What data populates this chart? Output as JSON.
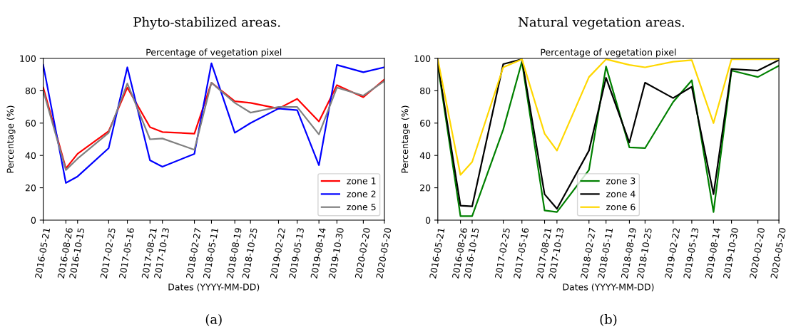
{
  "chart_data": [
    {
      "type": "line",
      "title": "Phyto-stabilized areas.",
      "subtitle": "Percentage of vegetation pixel",
      "xlabel": "Dates (YYYY-MM-DD)",
      "ylabel": "Percentage (%)",
      "annotations": [
        "(a)"
      ],
      "x": [
        "2016-05-21",
        "2016-08-26",
        "2016-10-15",
        "2017-02-25",
        "2017-05-16",
        "2017-08-21",
        "2017-10-13",
        "2018-02-27",
        "2018-05-11",
        "2018-08-19",
        "2018-10-25",
        "2019-02-22",
        "2019-05-13",
        "2019-08-14",
        "2019-10-30",
        "2020-02-20",
        "2020-05-20"
      ],
      "series": [
        {
          "name": "zone 1",
          "color": "#ff0000",
          "values": [
            82,
            32,
            41,
            55,
            82,
            57.5,
            54.5,
            53.5,
            85,
            73.5,
            72.5,
            69,
            75,
            61,
            83.5,
            76,
            87
          ]
        },
        {
          "name": "zone 2",
          "color": "#0000ff",
          "values": [
            96,
            23,
            27,
            44.5,
            94.5,
            37,
            33,
            41,
            97,
            54,
            60,
            69,
            68,
            34,
            96,
            91.5,
            94.5
          ]
        },
        {
          "name": "zone 5",
          "color": "#808080",
          "values": [
            80,
            31,
            38,
            54,
            84.5,
            50,
            50.5,
            43.5,
            85,
            72.5,
            66.5,
            70,
            70,
            53,
            82,
            77,
            86
          ]
        }
      ],
      "xlim": [
        "2016-05-21",
        "2020-05-20"
      ],
      "xticks": [
        "2016-05-21",
        "2016-08-26",
        "2016-10-15",
        "2017-02-25",
        "2017-05-16",
        "2017-08-21",
        "2017-10-13",
        "2018-02-27",
        "2018-05-11",
        "2018-08-19",
        "2018-10-25",
        "2019-02-22",
        "2019-05-13",
        "2019-08-14",
        "2019-10-30",
        "2020-02-20",
        "2020-05-20"
      ],
      "ylim": [
        0,
        100
      ],
      "yticks": [
        0,
        20,
        40,
        60,
        80,
        100
      ],
      "legend": "bottom right",
      "grid": false
    },
    {
      "type": "line",
      "title": "Natural vegetation areas.",
      "subtitle": "Percentage of vegetation pixel",
      "xlabel": "Dates (YYYY-MM-DD)",
      "ylabel": "Percentage (%)",
      "annotations": [
        "(b)"
      ],
      "x": [
        "2016-05-21",
        "2016-08-26",
        "2016-10-15",
        "2017-02-25",
        "2017-05-16",
        "2017-08-21",
        "2017-10-13",
        "2018-02-27",
        "2018-05-11",
        "2018-08-19",
        "2018-10-25",
        "2019-02-22",
        "2019-05-13",
        "2019-08-14",
        "2019-10-30",
        "2020-02-20",
        "2020-05-20"
      ],
      "series": [
        {
          "name": "zone 3",
          "color": "#008000",
          "values": [
            96,
            2.5,
            2.5,
            56,
            98,
            6,
            5,
            31,
            95,
            45,
            44.5,
            73,
            86.5,
            5,
            92.5,
            88.5,
            95.5
          ]
        },
        {
          "name": "zone 4",
          "color": "#000000",
          "values": [
            97,
            9,
            8.5,
            96.5,
            99.5,
            16,
            7,
            43,
            88,
            48,
            85,
            75.5,
            82.5,
            16,
            93.5,
            92.5,
            99
          ]
        },
        {
          "name": "zone 6",
          "color": "#ffd700",
          "values": [
            99.5,
            28,
            36,
            94.5,
            99.5,
            53.5,
            43,
            88.5,
            99.5,
            96,
            94.5,
            98,
            99,
            60,
            99.5,
            99.5,
            99.5
          ]
        }
      ],
      "xlim": [
        "2016-05-21",
        "2020-05-20"
      ],
      "xticks": [
        "2016-05-21",
        "2016-08-26",
        "2016-10-15",
        "2017-02-25",
        "2017-05-16",
        "2017-08-21",
        "2017-10-13",
        "2018-02-27",
        "2018-05-11",
        "2018-08-19",
        "2018-10-25",
        "2019-02-22",
        "2019-05-13",
        "2019-08-14",
        "2019-10-30",
        "2020-02-20",
        "2020-05-20"
      ],
      "ylim": [
        0,
        100
      ],
      "yticks": [
        0,
        20,
        40,
        60,
        80,
        100
      ],
      "legend": "bottom",
      "grid": false
    }
  ]
}
